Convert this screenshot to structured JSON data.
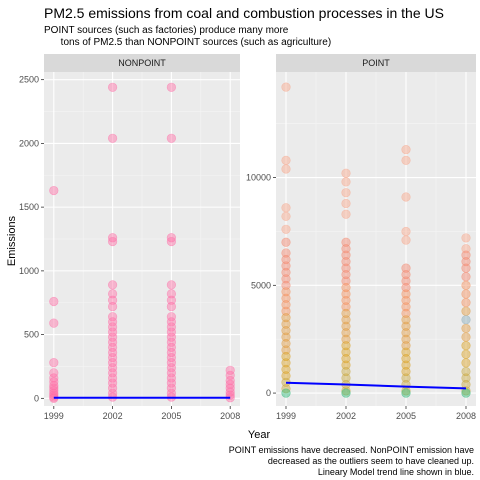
{
  "chart_data": {
    "type": "scatter",
    "title": "PM2.5 emissions from coal and combustion processes in the US",
    "subtitle": "POINT sources (such as factories) produce many more\n      tons of PM2.5 than NONPOINT sources (such as agriculture)",
    "caption": "POINT emissions have decreased. NonPOINT emission have\ndecreased as the outliers seem to have cleaned up.\nLineary Model trend line shown in blue.",
    "xlabel": "Year",
    "ylabel": "Emissions",
    "grid": true,
    "legend": "none",
    "x_ticks": [
      1999,
      2002,
      2005,
      2008
    ],
    "trend_color": "#0000ff",
    "panel_bg": "#ebebeb",
    "strip_bg": "#d9d9d9",
    "facets": [
      {
        "label": "NONPOINT",
        "ylim": [
          -60,
          2560
        ],
        "y_ticks": [
          0,
          500,
          1000,
          1500,
          2000,
          2500
        ],
        "trend": [
          [
            1999,
            5
          ],
          [
            2002,
            5
          ],
          [
            2005,
            5
          ],
          [
            2008,
            5
          ]
        ],
        "points": [
          [
            1999,
            1630,
            "#ff6ea7"
          ],
          [
            1999,
            760,
            "#ff6ea7"
          ],
          [
            1999,
            590,
            "#ff6ea7"
          ],
          [
            1999,
            280,
            "#ff6ea7"
          ],
          [
            1999,
            200,
            "#ff6ea7"
          ],
          [
            1999,
            160,
            "#ff6ea7"
          ],
          [
            1999,
            130,
            "#ff6ea7"
          ],
          [
            1999,
            100,
            "#ff6ea7"
          ],
          [
            1999,
            80,
            "#ff6ea7"
          ],
          [
            1999,
            60,
            "#ff6ea7"
          ],
          [
            1999,
            40,
            "#ff6ea7"
          ],
          [
            1999,
            25,
            "#ff6ea7"
          ],
          [
            1999,
            10,
            "#ff6ea7"
          ],
          [
            1999,
            0,
            "#ff6ea7"
          ],
          [
            2002,
            2440,
            "#ff6ea7"
          ],
          [
            2002,
            2040,
            "#ff6ea7"
          ],
          [
            2002,
            1260,
            "#ff6ea7"
          ],
          [
            2002,
            1230,
            "#ff6ea7"
          ],
          [
            2002,
            890,
            "#ff6ea7"
          ],
          [
            2002,
            820,
            "#ff6ea7"
          ],
          [
            2002,
            770,
            "#ff6ea7"
          ],
          [
            2002,
            720,
            "#ff6ea7"
          ],
          [
            2002,
            640,
            "#ff6ea7"
          ],
          [
            2002,
            600,
            "#ff6ea7"
          ],
          [
            2002,
            560,
            "#ff6ea7"
          ],
          [
            2002,
            520,
            "#ff6ea7"
          ],
          [
            2002,
            480,
            "#ff6ea7"
          ],
          [
            2002,
            440,
            "#ff6ea7"
          ],
          [
            2002,
            400,
            "#ff6ea7"
          ],
          [
            2002,
            360,
            "#ff6ea7"
          ],
          [
            2002,
            320,
            "#ff6ea7"
          ],
          [
            2002,
            280,
            "#ff6ea7"
          ],
          [
            2002,
            240,
            "#ff6ea7"
          ],
          [
            2002,
            200,
            "#ff6ea7"
          ],
          [
            2002,
            160,
            "#ff6ea7"
          ],
          [
            2002,
            120,
            "#ff6ea7"
          ],
          [
            2002,
            80,
            "#ff6ea7"
          ],
          [
            2002,
            40,
            "#ff6ea7"
          ],
          [
            2002,
            10,
            "#ff6ea7"
          ],
          [
            2005,
            2440,
            "#ff6ea7"
          ],
          [
            2005,
            2040,
            "#ff6ea7"
          ],
          [
            2005,
            1260,
            "#ff6ea7"
          ],
          [
            2005,
            1230,
            "#ff6ea7"
          ],
          [
            2005,
            890,
            "#ff6ea7"
          ],
          [
            2005,
            820,
            "#ff6ea7"
          ],
          [
            2005,
            770,
            "#ff6ea7"
          ],
          [
            2005,
            720,
            "#ff6ea7"
          ],
          [
            2005,
            640,
            "#ff6ea7"
          ],
          [
            2005,
            600,
            "#ff6ea7"
          ],
          [
            2005,
            560,
            "#ff6ea7"
          ],
          [
            2005,
            520,
            "#ff6ea7"
          ],
          [
            2005,
            480,
            "#ff6ea7"
          ],
          [
            2005,
            440,
            "#ff6ea7"
          ],
          [
            2005,
            400,
            "#ff6ea7"
          ],
          [
            2005,
            360,
            "#ff6ea7"
          ],
          [
            2005,
            320,
            "#ff6ea7"
          ],
          [
            2005,
            280,
            "#ff6ea7"
          ],
          [
            2005,
            240,
            "#ff6ea7"
          ],
          [
            2005,
            200,
            "#ff6ea7"
          ],
          [
            2005,
            160,
            "#ff6ea7"
          ],
          [
            2005,
            120,
            "#ff6ea7"
          ],
          [
            2005,
            80,
            "#ff6ea7"
          ],
          [
            2005,
            40,
            "#ff6ea7"
          ],
          [
            2005,
            10,
            "#ff6ea7"
          ],
          [
            2008,
            220,
            "#ff6ea7"
          ],
          [
            2008,
            180,
            "#ff6ea7"
          ],
          [
            2008,
            140,
            "#ff6ea7"
          ],
          [
            2008,
            110,
            "#ff6ea7"
          ],
          [
            2008,
            80,
            "#ff6ea7"
          ],
          [
            2008,
            50,
            "#ff6ea7"
          ],
          [
            2008,
            25,
            "#ff6ea7"
          ],
          [
            2008,
            5,
            "#ff6ea7"
          ]
        ]
      },
      {
        "label": "POINT",
        "ylim": [
          -600,
          14900
        ],
        "y_ticks": [
          0,
          5000,
          10000
        ],
        "trend": [
          [
            1999,
            480
          ],
          [
            2002,
            400
          ],
          [
            2005,
            300
          ],
          [
            2008,
            220
          ]
        ],
        "points": [
          [
            1999,
            14200,
            "#f8a68a"
          ],
          [
            1999,
            10800,
            "#f8a68a"
          ],
          [
            1999,
            10400,
            "#f8a68a"
          ],
          [
            1999,
            8600,
            "#f8a68a"
          ],
          [
            1999,
            8200,
            "#f8a68a"
          ],
          [
            1999,
            7600,
            "#f8a68a"
          ],
          [
            1999,
            7000,
            "#f4866c"
          ],
          [
            1999,
            6500,
            "#f4866c"
          ],
          [
            1999,
            6200,
            "#f4866c"
          ],
          [
            1999,
            5900,
            "#f4866c"
          ],
          [
            1999,
            5600,
            "#f4866c"
          ],
          [
            1999,
            5300,
            "#f4866c"
          ],
          [
            1999,
            5000,
            "#f4866c"
          ],
          [
            1999,
            4700,
            "#f58f5a"
          ],
          [
            1999,
            4400,
            "#f58f5a"
          ],
          [
            1999,
            4100,
            "#f58f5a"
          ],
          [
            1999,
            3800,
            "#f58f5a"
          ],
          [
            1999,
            3500,
            "#e09a3e"
          ],
          [
            1999,
            3200,
            "#e09a3e"
          ],
          [
            1999,
            2900,
            "#e09a3e"
          ],
          [
            1999,
            2600,
            "#e09a3e"
          ],
          [
            1999,
            2300,
            "#e09a3e"
          ],
          [
            1999,
            2000,
            "#e09a3e"
          ],
          [
            1999,
            1700,
            "#d9a020"
          ],
          [
            1999,
            1400,
            "#d9a020"
          ],
          [
            1999,
            1100,
            "#d9a020"
          ],
          [
            1999,
            800,
            "#d9a020"
          ],
          [
            1999,
            500,
            "#c8a63c"
          ],
          [
            1999,
            200,
            "#c8a63c"
          ],
          [
            1999,
            0,
            "#2dbb7a"
          ],
          [
            2002,
            10200,
            "#f8a68a"
          ],
          [
            2002,
            9800,
            "#f8a68a"
          ],
          [
            2002,
            9300,
            "#f8a68a"
          ],
          [
            2002,
            8800,
            "#f8a68a"
          ],
          [
            2002,
            8300,
            "#f8a68a"
          ],
          [
            2002,
            7000,
            "#f4866c"
          ],
          [
            2002,
            6700,
            "#f4866c"
          ],
          [
            2002,
            6400,
            "#f4866c"
          ],
          [
            2002,
            6100,
            "#f4866c"
          ],
          [
            2002,
            5800,
            "#f4866c"
          ],
          [
            2002,
            5500,
            "#f4866c"
          ],
          [
            2002,
            5200,
            "#f4866c"
          ],
          [
            2002,
            4900,
            "#f58f5a"
          ],
          [
            2002,
            4600,
            "#f58f5a"
          ],
          [
            2002,
            4300,
            "#f58f5a"
          ],
          [
            2002,
            4000,
            "#f58f5a"
          ],
          [
            2002,
            3700,
            "#e09a3e"
          ],
          [
            2002,
            3400,
            "#e09a3e"
          ],
          [
            2002,
            3100,
            "#e09a3e"
          ],
          [
            2002,
            2800,
            "#e09a3e"
          ],
          [
            2002,
            2500,
            "#e09a3e"
          ],
          [
            2002,
            2200,
            "#d9a020"
          ],
          [
            2002,
            1900,
            "#d9a020"
          ],
          [
            2002,
            1600,
            "#d9a020"
          ],
          [
            2002,
            1300,
            "#d9a020"
          ],
          [
            2002,
            1000,
            "#c8a63c"
          ],
          [
            2002,
            700,
            "#c8a63c"
          ],
          [
            2002,
            400,
            "#c8a63c"
          ],
          [
            2002,
            100,
            "#c8a63c"
          ],
          [
            2002,
            0,
            "#2dbb7a"
          ],
          [
            2005,
            11300,
            "#f8a68a"
          ],
          [
            2005,
            10800,
            "#f8a68a"
          ],
          [
            2005,
            9100,
            "#f8a68a"
          ],
          [
            2005,
            7500,
            "#f8a68a"
          ],
          [
            2005,
            7100,
            "#f8a68a"
          ],
          [
            2005,
            5800,
            "#f4866c"
          ],
          [
            2005,
            5500,
            "#f4866c"
          ],
          [
            2005,
            5200,
            "#f4866c"
          ],
          [
            2005,
            4900,
            "#f4866c"
          ],
          [
            2005,
            4600,
            "#f58f5a"
          ],
          [
            2005,
            4300,
            "#f58f5a"
          ],
          [
            2005,
            4000,
            "#f58f5a"
          ],
          [
            2005,
            3700,
            "#f58f5a"
          ],
          [
            2005,
            3400,
            "#e09a3e"
          ],
          [
            2005,
            3100,
            "#e09a3e"
          ],
          [
            2005,
            2800,
            "#e09a3e"
          ],
          [
            2005,
            2500,
            "#e09a3e"
          ],
          [
            2005,
            2200,
            "#e09a3e"
          ],
          [
            2005,
            1900,
            "#d9a020"
          ],
          [
            2005,
            1600,
            "#d9a020"
          ],
          [
            2005,
            1300,
            "#d9a020"
          ],
          [
            2005,
            1000,
            "#d9a020"
          ],
          [
            2005,
            700,
            "#c8a63c"
          ],
          [
            2005,
            400,
            "#c8a63c"
          ],
          [
            2005,
            100,
            "#c8a63c"
          ],
          [
            2005,
            0,
            "#2dbb7a"
          ],
          [
            2008,
            7200,
            "#f8a68a"
          ],
          [
            2008,
            6700,
            "#f8a68a"
          ],
          [
            2008,
            6400,
            "#f4866c"
          ],
          [
            2008,
            6100,
            "#f4866c"
          ],
          [
            2008,
            5800,
            "#f4866c"
          ],
          [
            2008,
            5400,
            "#f4866c"
          ],
          [
            2008,
            5000,
            "#f58f5a"
          ],
          [
            2008,
            4600,
            "#f58f5a"
          ],
          [
            2008,
            4200,
            "#f58f5a"
          ],
          [
            2008,
            3800,
            "#e09a3e"
          ],
          [
            2008,
            3400,
            "#88aab8"
          ],
          [
            2008,
            3000,
            "#e09a3e"
          ],
          [
            2008,
            2600,
            "#e09a3e"
          ],
          [
            2008,
            2200,
            "#d9a020"
          ],
          [
            2008,
            1800,
            "#d9a020"
          ],
          [
            2008,
            1400,
            "#d9a020"
          ],
          [
            2008,
            1000,
            "#c8a63c"
          ],
          [
            2008,
            700,
            "#c8a63c"
          ],
          [
            2008,
            400,
            "#c8a63c"
          ],
          [
            2008,
            100,
            "#c8a63c"
          ],
          [
            2008,
            0,
            "#2dbb7a"
          ]
        ]
      }
    ]
  }
}
